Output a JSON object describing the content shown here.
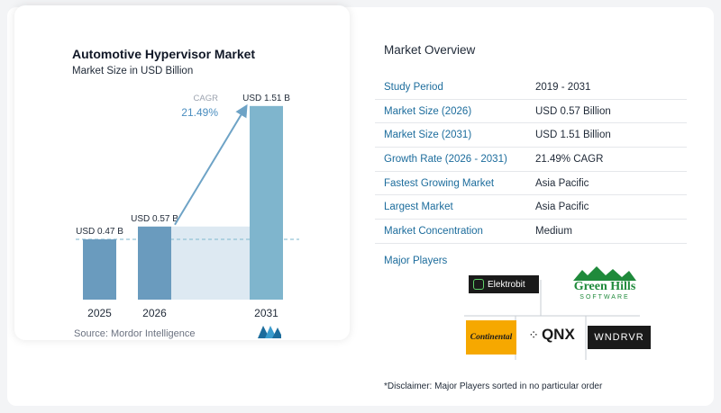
{
  "chart": {
    "title": "Automotive Hypervisor Market",
    "subtitle": "Market Size in USD Billion",
    "source": "Source: Mordor Intelligence",
    "cagr_label": "CAGR",
    "cagr_value": "21.49%"
  },
  "chart_data": {
    "type": "bar",
    "categories": [
      "2025",
      "2026",
      "2031"
    ],
    "values": [
      0.47,
      0.57,
      1.51
    ],
    "data_labels": [
      "USD 0.47 B",
      "USD 0.57 B",
      "USD 1.51 B"
    ],
    "title": "Automotive Hypervisor Market",
    "subtitle": "Market Size in USD Billion",
    "xlabel": "",
    "ylabel": "",
    "ylim": [
      0,
      1.6
    ],
    "grid": false,
    "colors": {
      "bar_dark": "#6a9bbe",
      "bar_light": "#7fb5cd",
      "area": "#dde9f2",
      "arrow": "#6ea3c6",
      "dashed": "#93c3d6"
    }
  },
  "overview": {
    "title": "Market Overview",
    "rows": [
      {
        "key": "Study Period",
        "value": "2019 - 2031"
      },
      {
        "key": "Market Size (2026)",
        "value": "USD 0.57 Billion"
      },
      {
        "key": "Market Size (2031)",
        "value": "USD 1.51 Billion"
      },
      {
        "key": "Growth Rate (2026 - 2031)",
        "value": "21.49% CAGR"
      },
      {
        "key": "Fastest Growing Market",
        "value": "Asia Pacific"
      },
      {
        "key": "Largest Market",
        "value": "Asia Pacific"
      },
      {
        "key": "Market Concentration",
        "value": "Medium"
      }
    ]
  },
  "players": {
    "title": "Major Players",
    "logos": {
      "elektrobit": "Elektrobit",
      "greenhills_1": "Green Hills",
      "greenhills_2": "SOFTWARE",
      "continental": "Continental",
      "qnx": "QNX",
      "windriver": "WNDRVR"
    }
  },
  "disclaimer": "*Disclaimer: Major Players sorted in no particular order"
}
